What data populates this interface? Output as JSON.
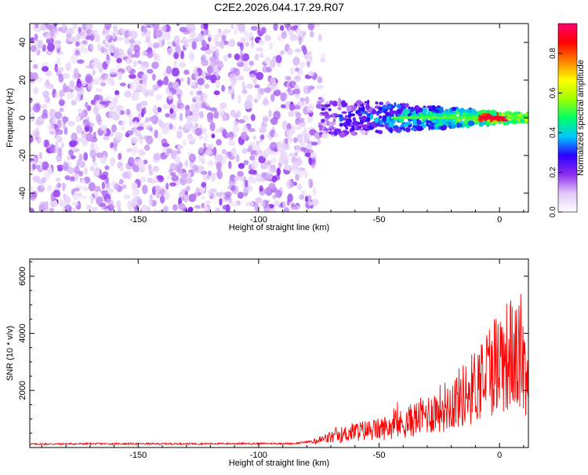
{
  "title": "C2E2.2026.044.17.29.R07",
  "chart_data": [
    {
      "type": "heatmap",
      "title": "C2E2.2026.044.17.29.R07",
      "xlabel": "Height of straight line (km)",
      "ylabel": "Frequency (Hz)",
      "xlim": [
        -195,
        12
      ],
      "ylim": [
        -50,
        50
      ],
      "x_ticks": [
        -150,
        -100,
        -50,
        0
      ],
      "y_ticks": [
        -40,
        -20,
        0,
        20,
        40
      ],
      "noise_region_x": [
        -195,
        -78
      ],
      "tone_frequency": 0,
      "tone_peak_x": -3,
      "colorbar": {
        "label": "Normalized spectral amplitude",
        "range": [
          0,
          0.95
        ],
        "ticks": [
          0.0,
          0.2,
          0.4,
          0.6,
          0.8
        ],
        "colors": [
          "#ffffff",
          "#e0c8f8",
          "#8c2cf0",
          "#2c00ff",
          "#00c8ff",
          "#00ff64",
          "#a0ff00",
          "#ffff00",
          "#ff8000",
          "#ff0000",
          "#ff0070"
        ]
      }
    },
    {
      "type": "line",
      "xlabel": "Height of straight line (km)",
      "ylabel": "SNR (10 * v/v)",
      "xlim": [
        -195,
        12
      ],
      "ylim": [
        0,
        6600
      ],
      "x_ticks": [
        -150,
        -100,
        -50,
        0
      ],
      "y_ticks": [
        2000,
        4000,
        6000
      ],
      "series_color": "#ff0000",
      "series": [
        {
          "name": "SNR",
          "x": [
            -195,
            -170,
            -140,
            -110,
            -85,
            -78,
            -70,
            -60,
            -50,
            -40,
            -30,
            -20,
            -12,
            -5,
            0,
            5,
            10,
            12
          ],
          "values": [
            120,
            130,
            130,
            135,
            140,
            220,
            450,
            700,
            800,
            1050,
            1450,
            1950,
            2500,
            3400,
            3900,
            4100,
            3700,
            3200
          ]
        }
      ]
    }
  ]
}
